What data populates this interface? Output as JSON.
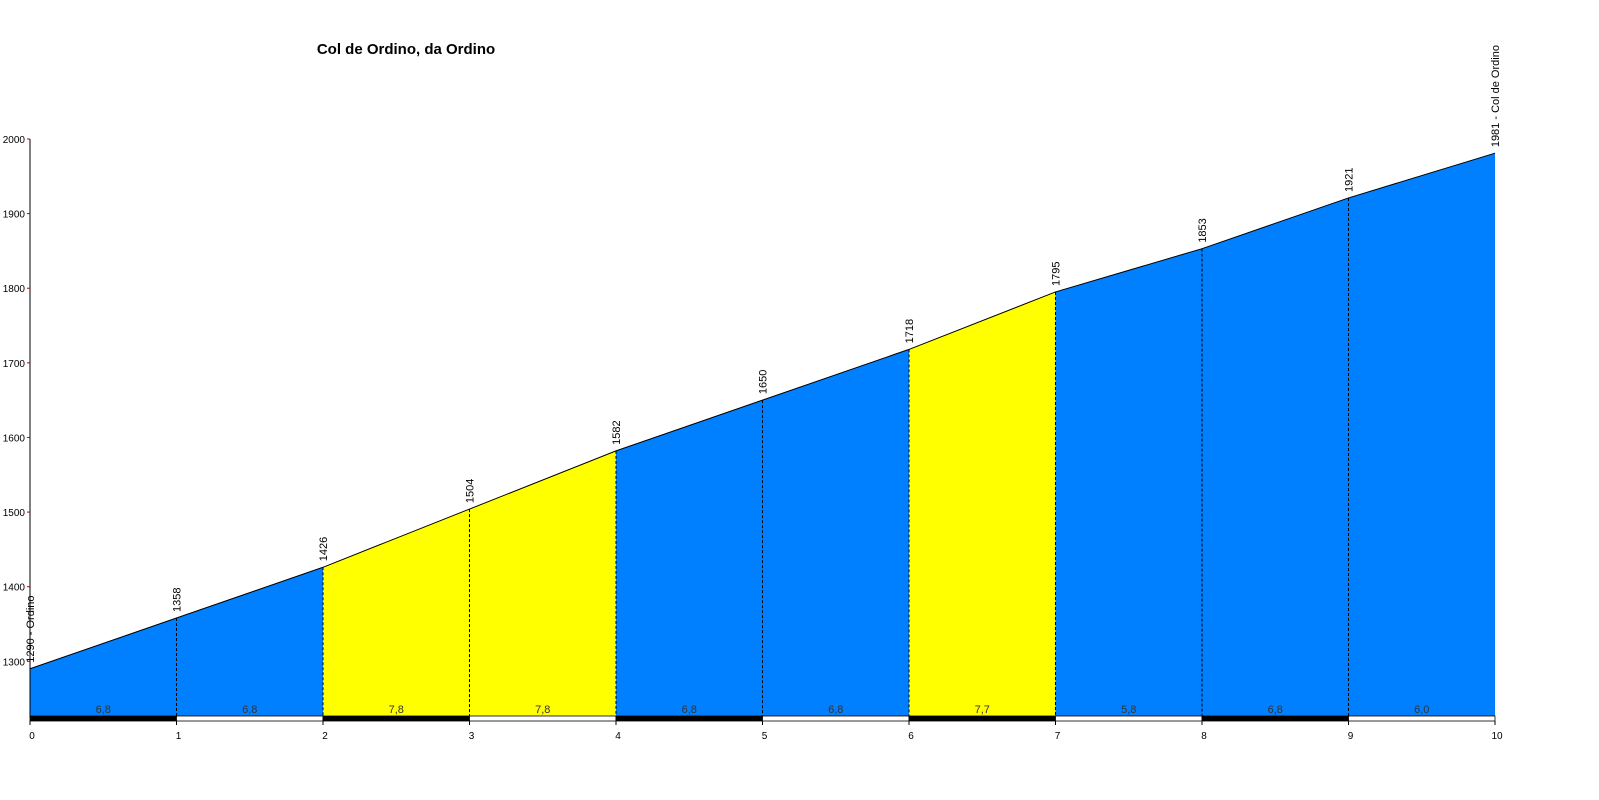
{
  "chart_data": {
    "type": "area",
    "title": "Col de Ordino, da Ordino",
    "x": [
      0,
      1,
      2,
      3,
      4,
      5,
      6,
      7,
      8,
      9,
      10
    ],
    "values": [
      1290,
      1358,
      1426,
      1504,
      1582,
      1650,
      1718,
      1795,
      1853,
      1921,
      1981
    ],
    "value_labels": [
      "1290 - Ordino",
      "1358",
      "1426",
      "1504",
      "1582",
      "1650",
      "1718",
      "1795",
      "1853",
      "1921",
      "1981 - Col de Ordino"
    ],
    "segments": {
      "values": [
        6.8,
        6.8,
        7.8,
        7.8,
        6.8,
        6.8,
        7.7,
        5.8,
        6.8,
        6.0
      ],
      "value_labels": [
        "6,8",
        "6,8",
        "7,8",
        "7,8",
        "6,8",
        "6,8",
        "7,7",
        "5,8",
        "6,8",
        "6,0"
      ],
      "colors": [
        "#0080ff",
        "#0080ff",
        "#ffff00",
        "#ffff00",
        "#0080ff",
        "#0080ff",
        "#ffff00",
        "#0080ff",
        "#0080ff",
        "#0080ff"
      ]
    },
    "xlim": [
      0,
      10
    ],
    "xticks": [
      0,
      1,
      2,
      3,
      4,
      5,
      6,
      7,
      8,
      9,
      10
    ],
    "ylim": [
      1224,
      2000
    ],
    "yticks": [
      1300,
      1400,
      1500,
      1600,
      1700,
      1800,
      1900,
      2000
    ]
  }
}
